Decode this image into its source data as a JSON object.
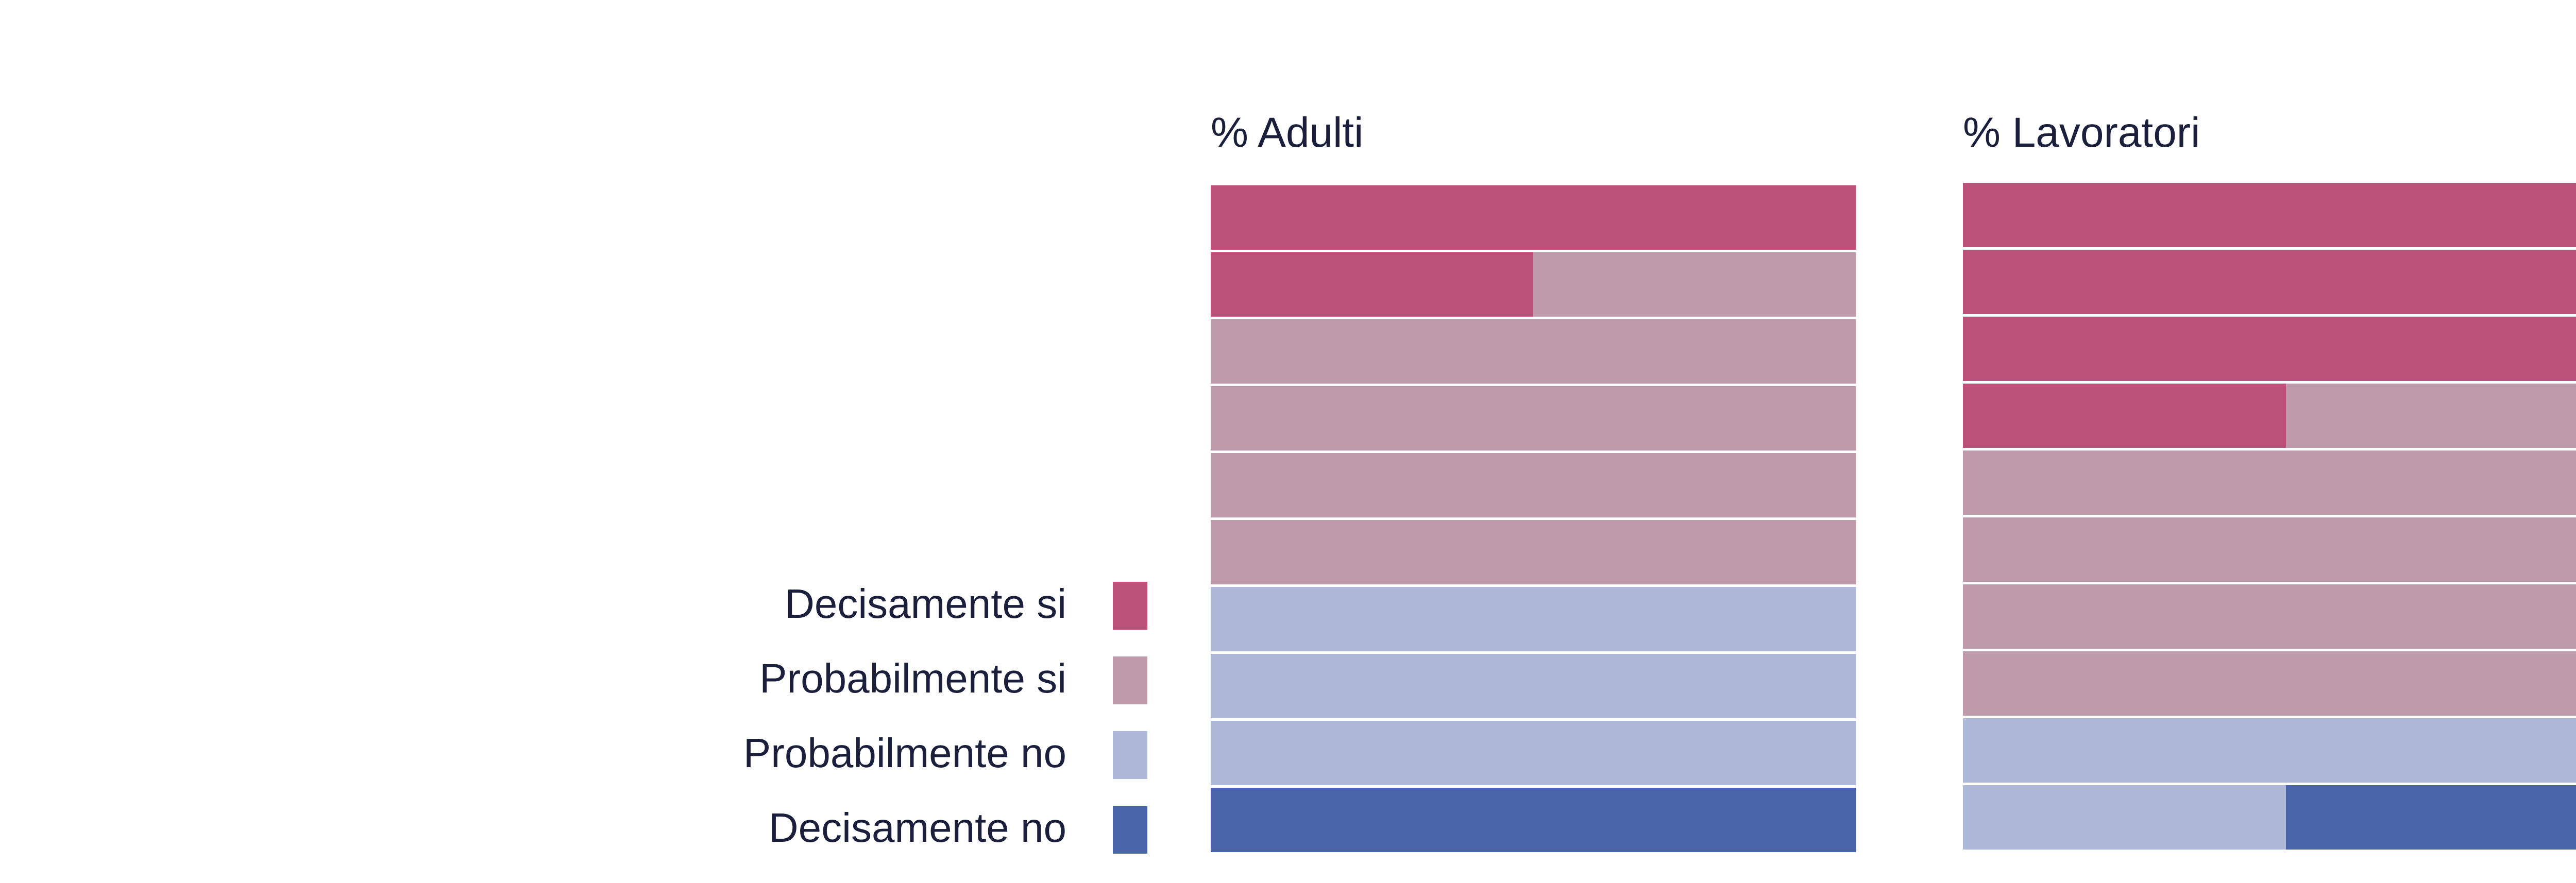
{
  "chart_data": {
    "type": "waffle",
    "units_per_chart": 20,
    "legend": [
      {
        "label": "Decisamente si",
        "color": "#bc5277"
      },
      {
        "label": "Probabilmente si",
        "color": "#be9aab"
      },
      {
        "label": "Probabilmente no",
        "color": "#aeb9da"
      },
      {
        "label": "Decisamente no",
        "color": "#4964a9"
      }
    ],
    "panels": [
      {
        "title": "% Adulti",
        "values": {
          "Decisamente si": 3,
          "Probabilmente si": 9,
          "Probabilmente no": 6,
          "Decisamente no": 2
        }
      },
      {
        "title": "% Lavoratori",
        "values": {
          "Decisamente si": 7,
          "Probabilmente si": 9,
          "Probabilmente no": 3,
          "Decisamente no": 1
        }
      }
    ]
  }
}
